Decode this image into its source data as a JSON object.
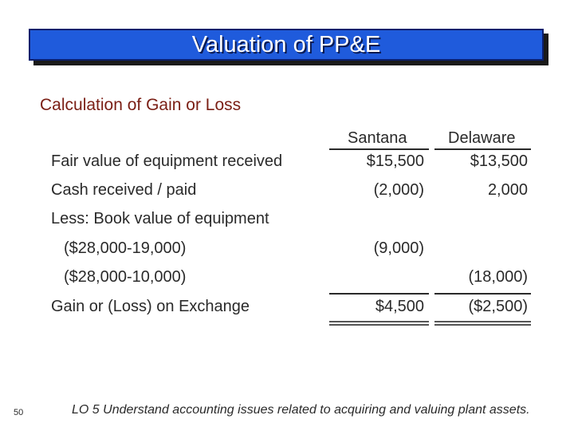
{
  "title": "Valuation of PP&E",
  "subtitle": "Calculation of Gain or Loss",
  "columns": [
    "Santana",
    "Delaware"
  ],
  "rows": [
    {
      "label": "Fair value of equipment received",
      "santana": "$15,500",
      "delaware": "$13,500"
    },
    {
      "label": "Cash received / paid",
      "santana": "(2,000)",
      "delaware": "2,000"
    },
    {
      "label": "Less: Book value of equipment",
      "santana": "",
      "delaware": ""
    },
    {
      "label": "($28,000-19,000)",
      "santana": "(9,000)",
      "delaware": ""
    },
    {
      "label": "($28,000-10,000)",
      "santana": "",
      "delaware": "(18,000)"
    },
    {
      "label": "Gain or (Loss) on Exchange",
      "santana": "$4,500",
      "delaware": "($2,500)"
    }
  ],
  "slide_number": "50",
  "footer": "LO 5  Understand accounting issues related to acquiring and valuing plant assets."
}
